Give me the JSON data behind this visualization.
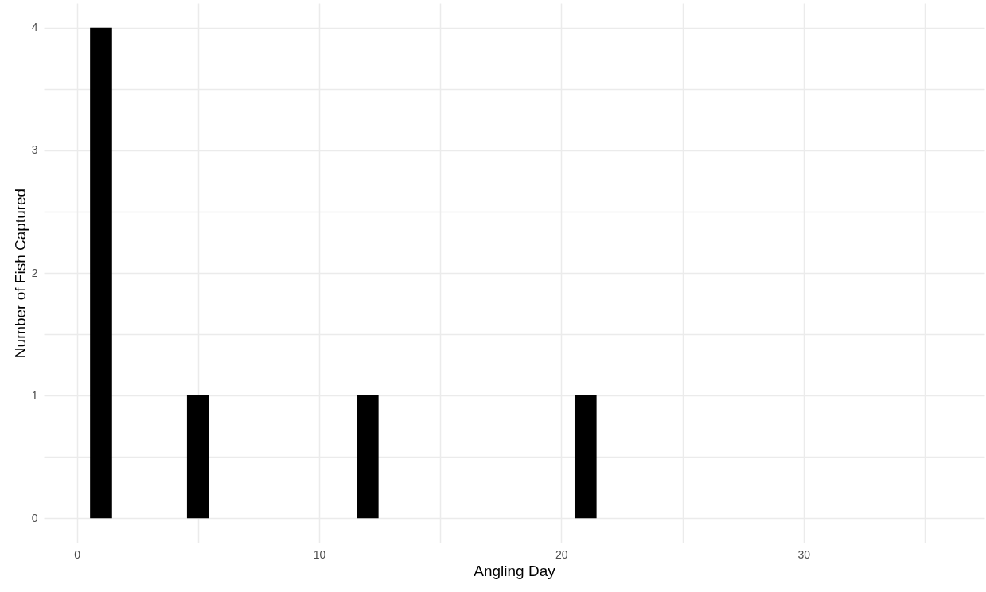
{
  "chart_data": {
    "type": "bar",
    "xlabel": "Angling Day",
    "ylabel": "Number of Fish Captured",
    "x": [
      1,
      5,
      12,
      21
    ],
    "values": [
      4,
      1,
      1,
      1
    ],
    "color": "#000000",
    "xlim": [
      -1.2,
      37.3
    ],
    "xticks": [
      0,
      {
        "value": 5,
        "label": null
      },
      10,
      {
        "value": 15,
        "label": null
      },
      20,
      {
        "value": 25,
        "label": null
      },
      30,
      {
        "value": 35,
        "label": null
      }
    ],
    "ylim": [
      -0.2,
      4.2
    ],
    "yticks": [
      0,
      {
        "value": 0.5,
        "label": null
      },
      1,
      {
        "value": 1.5,
        "label": null
      },
      2,
      {
        "value": 2.5,
        "label": null
      },
      3,
      {
        "value": 3.5,
        "label": null
      },
      4
    ],
    "grid": true
  }
}
